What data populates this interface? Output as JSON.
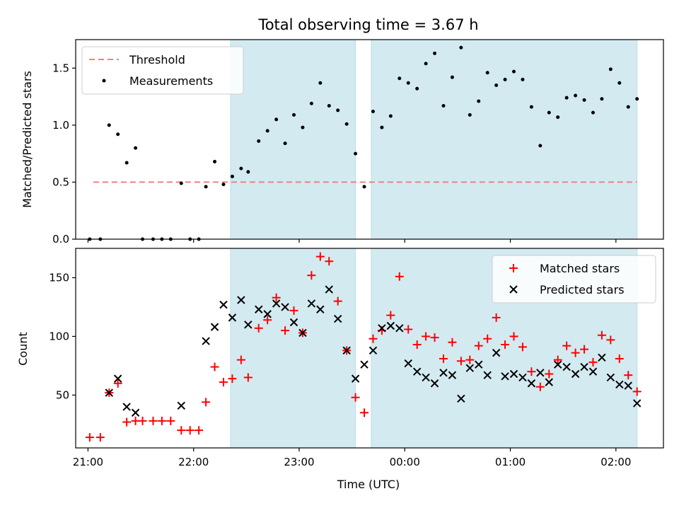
{
  "chart_data": [
    {
      "type": "scatter",
      "title": "Total observing time = 3.67 h",
      "ylabel": "Matched/Predicted stars",
      "xlabel": "",
      "xlim": [
        "20:53",
        "02:27"
      ],
      "ylim": [
        0,
        1.75
      ],
      "yticks": [
        0.0,
        0.5,
        1.0,
        1.5
      ],
      "ytick_labels": [
        "0.0",
        "0.5",
        "1.0",
        "1.5"
      ],
      "legend": {
        "placement": "upper-left",
        "entries": [
          "Threshold",
          "Measurements"
        ]
      },
      "shaded_intervals": [
        [
          "22:21",
          "23:32"
        ],
        [
          "23:41",
          "02:12"
        ]
      ],
      "shade_color": "#d4eaf1",
      "threshold": {
        "name": "Threshold",
        "y": 0.5,
        "x_range": [
          "21:03",
          "02:12"
        ],
        "color": "#f08080"
      },
      "series": [
        {
          "name": "Measurements",
          "color": "#000000",
          "points": [
            [
              "21:01",
              0.0
            ],
            [
              "21:07",
              0.0
            ],
            [
              "21:12",
              1.0
            ],
            [
              "21:17",
              0.92
            ],
            [
              "21:22",
              0.67
            ],
            [
              "21:27",
              0.8
            ],
            [
              "21:31",
              0.0
            ],
            [
              "21:37",
              0.0
            ],
            [
              "21:42",
              0.0
            ],
            [
              "21:47",
              0.0
            ],
            [
              "21:53",
              0.49
            ],
            [
              "21:58",
              0.0
            ],
            [
              "22:03",
              0.0
            ],
            [
              "22:07",
              0.46
            ],
            [
              "22:12",
              0.68
            ],
            [
              "22:17",
              0.48
            ],
            [
              "22:22",
              0.55
            ],
            [
              "22:27",
              0.62
            ],
            [
              "22:31",
              0.59
            ],
            [
              "22:37",
              0.86
            ],
            [
              "22:42",
              0.95
            ],
            [
              "22:47",
              1.05
            ],
            [
              "22:52",
              0.84
            ],
            [
              "22:57",
              1.09
            ],
            [
              "23:02",
              0.98
            ],
            [
              "23:07",
              1.19
            ],
            [
              "23:12",
              1.37
            ],
            [
              "23:17",
              1.17
            ],
            [
              "23:22",
              1.13
            ],
            [
              "23:27",
              1.01
            ],
            [
              "23:32",
              0.75
            ],
            [
              "23:37",
              0.46
            ],
            [
              "23:42",
              1.12
            ],
            [
              "23:47",
              0.98
            ],
            [
              "23:52",
              1.08
            ],
            [
              "23:57",
              1.41
            ],
            [
              "00:02",
              1.37
            ],
            [
              "00:07",
              1.32
            ],
            [
              "00:12",
              1.54
            ],
            [
              "00:17",
              1.63
            ],
            [
              "00:22",
              1.17
            ],
            [
              "00:27",
              1.42
            ],
            [
              "00:32",
              1.68
            ],
            [
              "00:37",
              1.09
            ],
            [
              "00:42",
              1.21
            ],
            [
              "00:47",
              1.46
            ],
            [
              "00:52",
              1.35
            ],
            [
              "00:57",
              1.4
            ],
            [
              "01:02",
              1.47
            ],
            [
              "01:07",
              1.4
            ],
            [
              "01:12",
              1.16
            ],
            [
              "01:17",
              0.82
            ],
            [
              "01:22",
              1.11
            ],
            [
              "01:27",
              1.07
            ],
            [
              "01:32",
              1.24
            ],
            [
              "01:37",
              1.26
            ],
            [
              "01:42",
              1.22
            ],
            [
              "01:47",
              1.11
            ],
            [
              "01:52",
              1.23
            ],
            [
              "01:57",
              1.49
            ],
            [
              "02:02",
              1.37
            ],
            [
              "02:07",
              1.16
            ],
            [
              "02:12",
              1.23
            ]
          ]
        }
      ]
    },
    {
      "type": "scatter",
      "title": "",
      "xlabel": "Time (UTC)",
      "ylabel": "Count",
      "xlim": [
        "20:53",
        "02:27"
      ],
      "ylim": [
        5,
        175
      ],
      "xticks": [
        "21:00",
        "22:00",
        "23:00",
        "00:00",
        "01:00",
        "02:00"
      ],
      "yticks": [
        50,
        100,
        150
      ],
      "legend": {
        "placement": "upper-right",
        "entries": [
          "Matched stars",
          "Predicted stars"
        ]
      },
      "shaded_intervals": [
        [
          "22:21",
          "23:32"
        ],
        [
          "23:41",
          "02:12"
        ]
      ],
      "shade_color": "#d4eaf1",
      "series": [
        {
          "name": "Matched stars",
          "marker": "+",
          "color": "#ff0000",
          "points": [
            [
              "21:01",
              14
            ],
            [
              "21:07",
              14
            ],
            [
              "21:12",
              52
            ],
            [
              "21:17",
              60
            ],
            [
              "21:22",
              27
            ],
            [
              "21:27",
              28
            ],
            [
              "21:31",
              28
            ],
            [
              "21:37",
              28
            ],
            [
              "21:42",
              28
            ],
            [
              "21:47",
              28
            ],
            [
              "21:53",
              20
            ],
            [
              "21:58",
              20
            ],
            [
              "22:03",
              20
            ],
            [
              "22:07",
              44
            ],
            [
              "22:12",
              74
            ],
            [
              "22:17",
              61
            ],
            [
              "22:22",
              64
            ],
            [
              "22:27",
              80
            ],
            [
              "22:31",
              65
            ],
            [
              "22:37",
              107
            ],
            [
              "22:42",
              114
            ],
            [
              "22:47",
              133
            ],
            [
              "22:52",
              105
            ],
            [
              "22:57",
              122
            ],
            [
              "23:02",
              103
            ],
            [
              "23:07",
              152
            ],
            [
              "23:12",
              168
            ],
            [
              "23:17",
              164
            ],
            [
              "23:22",
              130
            ],
            [
              "23:27",
              88
            ],
            [
              "23:32",
              48
            ],
            [
              "23:37",
              35
            ],
            [
              "23:42",
              98
            ],
            [
              "23:47",
              105
            ],
            [
              "23:52",
              118
            ],
            [
              "23:57",
              151
            ],
            [
              "00:02",
              106
            ],
            [
              "00:07",
              93
            ],
            [
              "00:12",
              100
            ],
            [
              "00:17",
              99
            ],
            [
              "00:22",
              81
            ],
            [
              "00:27",
              95
            ],
            [
              "00:32",
              79
            ],
            [
              "00:37",
              80
            ],
            [
              "00:42",
              92
            ],
            [
              "00:47",
              98
            ],
            [
              "00:52",
              116
            ],
            [
              "00:57",
              93
            ],
            [
              "01:02",
              100
            ],
            [
              "01:07",
              91
            ],
            [
              "01:12",
              70
            ],
            [
              "01:17",
              57
            ],
            [
              "01:22",
              68
            ],
            [
              "01:27",
              80
            ],
            [
              "01:32",
              92
            ],
            [
              "01:37",
              86
            ],
            [
              "01:42",
              89
            ],
            [
              "01:47",
              78
            ],
            [
              "01:52",
              101
            ],
            [
              "01:57",
              97
            ],
            [
              "02:02",
              81
            ],
            [
              "02:07",
              67
            ],
            [
              "02:12",
              53
            ]
          ]
        },
        {
          "name": "Predicted stars",
          "marker": "x",
          "color": "#000000",
          "points": [
            [
              "21:12",
              52
            ],
            [
              "21:17",
              64
            ],
            [
              "21:22",
              40
            ],
            [
              "21:27",
              35
            ],
            [
              "21:53",
              41
            ],
            [
              "22:07",
              96
            ],
            [
              "22:12",
              108
            ],
            [
              "22:17",
              127
            ],
            [
              "22:22",
              116
            ],
            [
              "22:27",
              131
            ],
            [
              "22:31",
              110
            ],
            [
              "22:37",
              123
            ],
            [
              "22:42",
              119
            ],
            [
              "22:47",
              128
            ],
            [
              "22:52",
              125
            ],
            [
              "22:57",
              112
            ],
            [
              "23:02",
              103
            ],
            [
              "23:07",
              128
            ],
            [
              "23:12",
              123
            ],
            [
              "23:17",
              140
            ],
            [
              "23:22",
              115
            ],
            [
              "23:27",
              88
            ],
            [
              "23:32",
              64
            ],
            [
              "23:37",
              76
            ],
            [
              "23:42",
              88
            ],
            [
              "23:47",
              107
            ],
            [
              "23:52",
              109
            ],
            [
              "23:57",
              107
            ],
            [
              "00:02",
              77
            ],
            [
              "00:07",
              70
            ],
            [
              "00:12",
              65
            ],
            [
              "00:17",
              60
            ],
            [
              "00:22",
              69
            ],
            [
              "00:27",
              67
            ],
            [
              "00:32",
              47
            ],
            [
              "00:37",
              73
            ],
            [
              "00:42",
              76
            ],
            [
              "00:47",
              67
            ],
            [
              "00:52",
              86
            ],
            [
              "00:57",
              66
            ],
            [
              "01:02",
              68
            ],
            [
              "01:07",
              65
            ],
            [
              "01:12",
              60
            ],
            [
              "01:17",
              69
            ],
            [
              "01:22",
              61
            ],
            [
              "01:27",
              76
            ],
            [
              "01:32",
              74
            ],
            [
              "01:37",
              68
            ],
            [
              "01:42",
              74
            ],
            [
              "01:47",
              70
            ],
            [
              "01:52",
              82
            ],
            [
              "01:57",
              65
            ],
            [
              "02:02",
              59
            ],
            [
              "02:07",
              58
            ],
            [
              "02:12",
              43
            ]
          ]
        }
      ]
    }
  ]
}
